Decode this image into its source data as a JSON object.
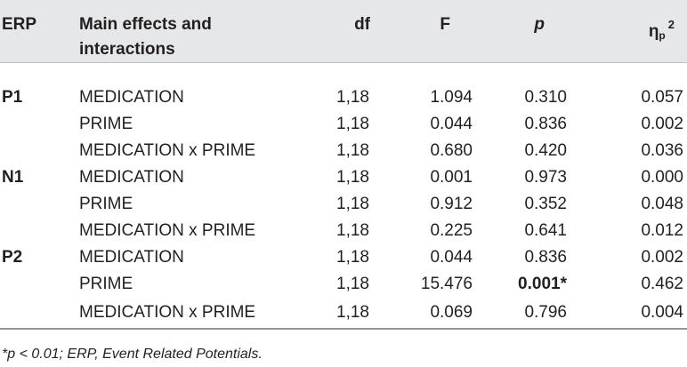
{
  "table": {
    "headers": {
      "erp": "ERP",
      "effect_line1": "Main effects and",
      "effect_line2": "interactions",
      "df": "df",
      "f": "F",
      "p": "p",
      "eta_base": "η",
      "eta_sub": "p",
      "eta_sup": "2"
    },
    "rows": [
      {
        "erp": "P1",
        "effect": "MEDICATION",
        "df": "1,18",
        "f": "1.094",
        "p": "0.310",
        "eta": "0.057"
      },
      {
        "erp": "",
        "effect": "PRIME",
        "df": "1,18",
        "f": "0.044",
        "p": "0.836",
        "eta": "0.002"
      },
      {
        "erp": "",
        "effect": "MEDICATION x PRIME",
        "df": "1,18",
        "f": "0.680",
        "p": "0.420",
        "eta": "0.036"
      },
      {
        "erp": "N1",
        "effect": "MEDICATION",
        "df": "1,18",
        "f": "0.001",
        "p": "0.973",
        "eta": "0.000"
      },
      {
        "erp": "",
        "effect": "PRIME",
        "df": "1,18",
        "f": "0.912",
        "p": "0.352",
        "eta": "0.048"
      },
      {
        "erp": "",
        "effect": "MEDICATION x PRIME",
        "df": "1,18",
        "f": "0.225",
        "p": "0.641",
        "eta": "0.012"
      },
      {
        "erp": "P2",
        "effect": "MEDICATION",
        "df": "1,18",
        "f": "0.044",
        "p": "0.836",
        "eta": "0.002"
      },
      {
        "erp": "",
        "effect": "PRIME",
        "df": "1,18",
        "f": "15.476",
        "p": "0.001*",
        "eta": "0.462",
        "significant": true
      },
      {
        "erp": "",
        "effect": "MEDICATION x PRIME",
        "df": "1,18",
        "f": "0.069",
        "p": "0.796",
        "eta": "0.004"
      }
    ]
  },
  "footnote": {
    "prefix": "*",
    "p": "p",
    "rest": " < 0.01; ERP, Event Related Potentials."
  }
}
